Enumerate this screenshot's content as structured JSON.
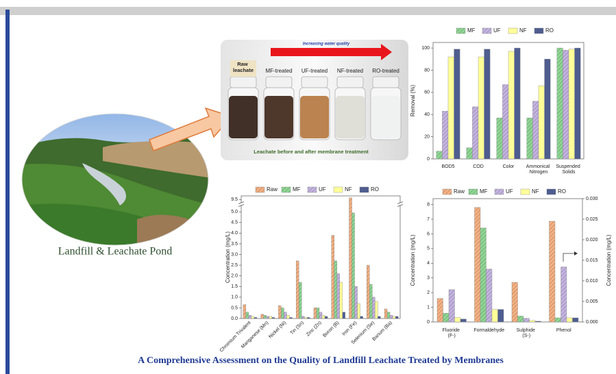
{
  "photo": {
    "caption": "Landfill & Leachate Pond"
  },
  "membrane_photo": {
    "banner": "Increasing water quality",
    "labels": [
      "Raw leachate",
      "MF-treated",
      "UF-treated",
      "NF-treated",
      "RO-treated"
    ],
    "caption": "Leachate before and after membrane treatment"
  },
  "chart_data": [
    {
      "type": "bar",
      "y_label": "Removal (%)",
      "categories": [
        "BOD5",
        "COD",
        "Color",
        "Ammonical Nitrogen",
        "Suspended Solids"
      ],
      "series": [
        {
          "name": "MF",
          "color": "#8fd694",
          "hatch": true,
          "values": [
            7,
            10,
            37,
            37,
            100
          ]
        },
        {
          "name": "UF",
          "color": "#c3b3e0",
          "hatch": true,
          "values": [
            43,
            47,
            67,
            52,
            98
          ]
        },
        {
          "name": "NF",
          "color": "#ffff99",
          "hatch": false,
          "values": [
            92,
            92,
            97,
            66,
            99
          ]
        },
        {
          "name": "RO",
          "color": "#4e5d8f",
          "hatch": false,
          "values": [
            99,
            99,
            100,
            90,
            100
          ]
        }
      ],
      "ylim": [
        0,
        105
      ],
      "yticks": [
        0,
        20,
        40,
        60,
        80,
        100
      ],
      "legend": "top"
    },
    {
      "type": "bar",
      "y_label": "Concentration (mg/L)",
      "categories": [
        "Chromium Trivalent",
        "Manganese (Mn)",
        "Nickel (Ni)",
        "Tin (Sn)",
        "Zinc (Zn)",
        "Boron (B)",
        "Iron (Fe)",
        "Selenium (Se)",
        "Barium (Ba)"
      ],
      "series": [
        {
          "name": "Raw",
          "color": "#f4b183",
          "hatch": true,
          "values": [
            0.65,
            0.2,
            0.6,
            2.7,
            0.5,
            3.9,
            9.6,
            2.5,
            0.45
          ]
        },
        {
          "name": "MF",
          "color": "#8fd694",
          "hatch": true,
          "values": [
            0.3,
            0.15,
            0.5,
            1.7,
            0.5,
            2.7,
            4.95,
            1.6,
            0.3
          ]
        },
        {
          "name": "UF",
          "color": "#c3b3e0",
          "hatch": true,
          "values": [
            0.15,
            0.1,
            0.3,
            0.1,
            0.3,
            2.1,
            1.5,
            1.0,
            0.15
          ]
        },
        {
          "name": "NF",
          "color": "#ffff99",
          "hatch": false,
          "values": [
            0.1,
            0.1,
            0.15,
            0.05,
            0.15,
            1.7,
            0.7,
            0.8,
            0.1
          ]
        },
        {
          "name": "RO",
          "color": "#4e5d8f",
          "hatch": false,
          "values": [
            0.05,
            0.05,
            0.05,
            0.05,
            0.1,
            0.3,
            0.1,
            0.1,
            0.1
          ]
        }
      ],
      "ylim": [
        0,
        9.7
      ],
      "ysegments": [
        [
          0,
          5.2
        ],
        [
          9.4,
          9.7
        ]
      ],
      "yticks": [
        {
          "value": 0,
          "label": "0.0"
        },
        0.5,
        {
          "value": 1,
          "label": "1.0"
        },
        1.5,
        {
          "value": 2,
          "label": "2.0"
        },
        2.5,
        {
          "value": 3,
          "label": "3.0"
        },
        3.5,
        {
          "value": 4,
          "label": "4.0"
        },
        4.5,
        {
          "value": 5,
          "label": "5.0"
        },
        9.5
      ],
      "legend": "top",
      "rotate_categories": true
    },
    {
      "type": "bar",
      "y_label": "Concentration (mg/L)",
      "y2_label": "Concentration (mg/L)",
      "categories": [
        "Fluoride (F-)",
        "Formaldehyde",
        "Sulphide (S-)",
        "Phenol"
      ],
      "category_axis": [
        "y",
        "y",
        "y",
        "y2"
      ],
      "series": [
        {
          "name": "Raw",
          "color": "#f4b183",
          "hatch": true,
          "values": [
            1.6,
            7.8,
            2.7,
            0.0245
          ]
        },
        {
          "name": "MF",
          "color": "#8fd694",
          "hatch": true,
          "values": [
            0.6,
            6.4,
            0.4,
            0.001
          ]
        },
        {
          "name": "UF",
          "color": "#c3b3e0",
          "hatch": true,
          "values": [
            2.2,
            3.6,
            0.25,
            0.0134
          ]
        },
        {
          "name": "NF",
          "color": "#ffff99",
          "hatch": false,
          "values": [
            0.3,
            0.85,
            0.1,
            0.001
          ]
        },
        {
          "name": "RO",
          "color": "#4e5d8f",
          "hatch": false,
          "values": [
            0.2,
            0.85,
            0.05,
            0.001
          ]
        }
      ],
      "ylim": [
        0,
        8.4
      ],
      "yticks": [
        0,
        1,
        2,
        3,
        4,
        5,
        6,
        7,
        8
      ],
      "y2lim": [
        0,
        0.03
      ],
      "y2ticks": [
        {
          "value": 0,
          "label": "0.000"
        },
        0.005,
        {
          "value": 0.01,
          "label": "0.010"
        },
        0.015,
        {
          "value": 0.02,
          "label": "0.020"
        },
        0.025,
        {
          "value": 0.03,
          "label": "0.030"
        }
      ],
      "legend": "top"
    }
  ],
  "footer": {
    "title": "A Comprehensive Assessment on the Quality of Landfill Leachate Treated by Membranes"
  }
}
